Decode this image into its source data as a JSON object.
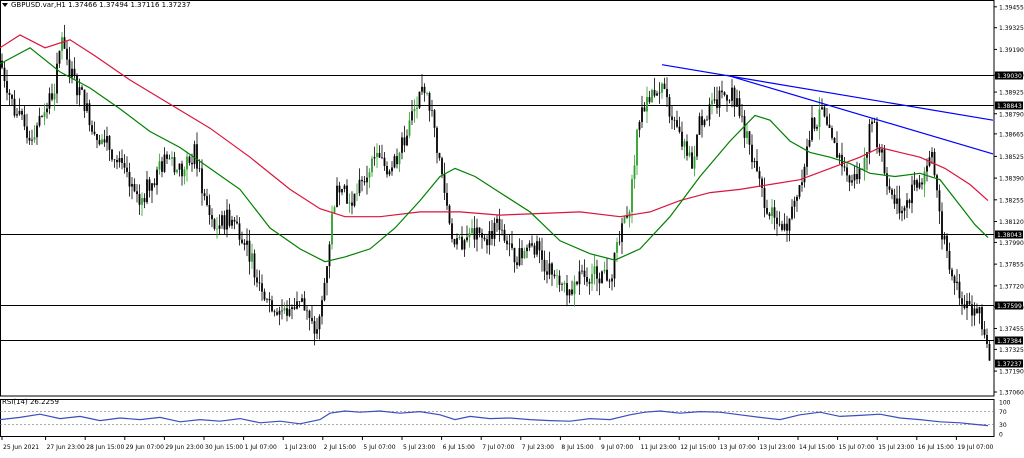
{
  "header": {
    "symbol_timeframe": "GBPUSD.var,H1",
    "ohlc": "1.37466 1.37494 1.37116 1.37237"
  },
  "rsi": {
    "label": "RSI(14) 26.2259",
    "levels": [
      "100",
      "70",
      "30",
      "0"
    ]
  },
  "colors": {
    "candle": "#000000",
    "bull_candle": "#2ca02c",
    "ma_fast": "#008000",
    "ma_slow": "#dc143c",
    "trendline": "#0000ff",
    "level_line": "#000000",
    "rsi_line": "#3b4dbf"
  },
  "chart_data": {
    "type": "candlestick",
    "price_axis": {
      "min": 1.3706,
      "max": 1.3946,
      "ticks": [
        "1.39455",
        "1.39325",
        "1.39190",
        "1.39030",
        "1.38925",
        "1.38790",
        "1.38665",
        "1.38525",
        "1.38390",
        "1.38255",
        "1.38120",
        "1.37990",
        "1.37855",
        "1.37720",
        "1.37590",
        "1.37455",
        "1.37325",
        "1.37190",
        "1.37060"
      ]
    },
    "x_labels": [
      "25 Jun 2021",
      "27 Jun 23:00",
      "28 Jun 15:00",
      "29 Jun 07:00",
      "29 Jun 23:00",
      "30 Jun 15:00",
      "1 Jul 07:00",
      "1 Jul 23:00",
      "2 Jul 15:00",
      "5 Jul 07:00",
      "5 Jul 23:00",
      "6 Jul 15:00",
      "7 Jul 07:00",
      "7 Jul 23:00",
      "8 Jul 15:00",
      "9 Jul 07:00",
      "11 Jul 23:00",
      "12 Jul 15:00",
      "13 Jul 07:00",
      "13 Jul 23:00",
      "14 Jul 15:00",
      "15 Jul 07:00",
      "15 Jul 23:00",
      "16 Jul 15:00",
      "19 Jul 07:00"
    ],
    "horizontal_levels": [
      {
        "price": 1.3903,
        "label": "1.39030"
      },
      {
        "price": 1.38843,
        "label": "1.38843"
      },
      {
        "price": 1.38043,
        "label": "1.38043"
      },
      {
        "price": 1.37599,
        "label": "1.37599"
      },
      {
        "price": 1.37384,
        "label": "1.37384"
      }
    ],
    "current_price": {
      "price": 1.37237,
      "label": "1.37237"
    },
    "path_price": [
      [
        0,
        1.3912
      ],
      [
        15,
        1.388
      ],
      [
        30,
        1.3865
      ],
      [
        40,
        1.3875
      ],
      [
        55,
        1.3895
      ],
      [
        62,
        1.393
      ],
      [
        70,
        1.3905
      ],
      [
        82,
        1.389
      ],
      [
        95,
        1.3868
      ],
      [
        110,
        1.3858
      ],
      [
        125,
        1.384
      ],
      [
        138,
        1.3822
      ],
      [
        152,
        1.3838
      ],
      [
        168,
        1.3852
      ],
      [
        182,
        1.3842
      ],
      [
        195,
        1.3855
      ],
      [
        205,
        1.3825
      ],
      [
        215,
        1.3808
      ],
      [
        230,
        1.3815
      ],
      [
        245,
        1.3802
      ],
      [
        255,
        1.3782
      ],
      [
        270,
        1.3762
      ],
      [
        285,
        1.3755
      ],
      [
        300,
        1.3765
      ],
      [
        310,
        1.3748
      ],
      [
        318,
        1.3742
      ],
      [
        326,
        1.3782
      ],
      [
        334,
        1.3825
      ],
      [
        342,
        1.3838
      ],
      [
        350,
        1.3822
      ],
      [
        362,
        1.3835
      ],
      [
        375,
        1.3852
      ],
      [
        388,
        1.3845
      ],
      [
        400,
        1.3855
      ],
      [
        412,
        1.3878
      ],
      [
        422,
        1.389
      ],
      [
        430,
        1.3885
      ],
      [
        438,
        1.3855
      ],
      [
        446,
        1.3825
      ],
      [
        455,
        1.3795
      ],
      [
        470,
        1.3805
      ],
      [
        485,
        1.38
      ],
      [
        500,
        1.3812
      ],
      [
        510,
        1.3792
      ],
      [
        520,
        1.379
      ],
      [
        532,
        1.38
      ],
      [
        545,
        1.3785
      ],
      [
        558,
        1.378
      ],
      [
        570,
        1.3768
      ],
      [
        582,
        1.3778
      ],
      [
        595,
        1.378
      ],
      [
        610,
        1.3778
      ],
      [
        620,
        1.38
      ],
      [
        630,
        1.3825
      ],
      [
        640,
        1.388
      ],
      [
        650,
        1.3892
      ],
      [
        660,
        1.3895
      ],
      [
        672,
        1.3878
      ],
      [
        682,
        1.386
      ],
      [
        692,
        1.3848
      ],
      [
        700,
        1.3875
      ],
      [
        712,
        1.3882
      ],
      [
        722,
        1.389
      ],
      [
        732,
        1.3892
      ],
      [
        742,
        1.3875
      ],
      [
        752,
        1.385
      ],
      [
        762,
        1.383
      ],
      [
        772,
        1.3815
      ],
      [
        782,
        1.3805
      ],
      [
        792,
        1.3818
      ],
      [
        802,
        1.3842
      ],
      [
        812,
        1.3872
      ],
      [
        822,
        1.3878
      ],
      [
        832,
        1.386
      ],
      [
        842,
        1.385
      ],
      [
        852,
        1.3835
      ],
      [
        862,
        1.3845
      ],
      [
        872,
        1.3875
      ],
      [
        882,
        1.3852
      ],
      [
        892,
        1.3825
      ],
      [
        902,
        1.382
      ],
      [
        912,
        1.383
      ],
      [
        922,
        1.3838
      ],
      [
        932,
        1.3855
      ],
      [
        940,
        1.381
      ],
      [
        948,
        1.379
      ],
      [
        958,
        1.377
      ],
      [
        968,
        1.376
      ],
      [
        978,
        1.3755
      ],
      [
        985,
        1.3745
      ],
      [
        990,
        1.37237
      ]
    ],
    "ma_slow": [
      [
        0,
        1.392
      ],
      [
        20,
        1.3928
      ],
      [
        45,
        1.392
      ],
      [
        70,
        1.3925
      ],
      [
        95,
        1.3915
      ],
      [
        130,
        1.39
      ],
      [
        170,
        1.3885
      ],
      [
        210,
        1.387
      ],
      [
        250,
        1.3852
      ],
      [
        290,
        1.3832
      ],
      [
        320,
        1.382
      ],
      [
        345,
        1.3815
      ],
      [
        380,
        1.3815
      ],
      [
        420,
        1.3818
      ],
      [
        460,
        1.3818
      ],
      [
        500,
        1.3816
      ],
      [
        540,
        1.3817
      ],
      [
        580,
        1.3818
      ],
      [
        620,
        1.3815
      ],
      [
        650,
        1.3818
      ],
      [
        680,
        1.3825
      ],
      [
        710,
        1.383
      ],
      [
        740,
        1.3832
      ],
      [
        770,
        1.3835
      ],
      [
        800,
        1.3838
      ],
      [
        830,
        1.3845
      ],
      [
        860,
        1.3852
      ],
      [
        880,
        1.3858
      ],
      [
        900,
        1.3855
      ],
      [
        920,
        1.3852
      ],
      [
        945,
        1.3845
      ],
      [
        970,
        1.3835
      ],
      [
        988,
        1.3825
      ]
    ],
    "ma_fast": [
      [
        0,
        1.391
      ],
      [
        30,
        1.392
      ],
      [
        60,
        1.3905
      ],
      [
        90,
        1.3895
      ],
      [
        120,
        1.3882
      ],
      [
        150,
        1.3868
      ],
      [
        180,
        1.3858
      ],
      [
        210,
        1.3845
      ],
      [
        240,
        1.3832
      ],
      [
        270,
        1.3808
      ],
      [
        300,
        1.3795
      ],
      [
        325,
        1.3787
      ],
      [
        345,
        1.379
      ],
      [
        370,
        1.3795
      ],
      [
        395,
        1.3808
      ],
      [
        420,
        1.3825
      ],
      [
        440,
        1.384
      ],
      [
        455,
        1.3845
      ],
      [
        475,
        1.384
      ],
      [
        500,
        1.383
      ],
      [
        530,
        1.3818
      ],
      [
        560,
        1.38
      ],
      [
        590,
        1.3792
      ],
      [
        615,
        1.3788
      ],
      [
        640,
        1.3795
      ],
      [
        670,
        1.3815
      ],
      [
        700,
        1.384
      ],
      [
        730,
        1.3862
      ],
      [
        755,
        1.3878
      ],
      [
        770,
        1.3875
      ],
      [
        790,
        1.3862
      ],
      [
        810,
        1.3855
      ],
      [
        830,
        1.3852
      ],
      [
        850,
        1.3848
      ],
      [
        870,
        1.3842
      ],
      [
        895,
        1.384
      ],
      [
        920,
        1.3842
      ],
      [
        940,
        1.3838
      ],
      [
        960,
        1.3822
      ],
      [
        975,
        1.381
      ],
      [
        988,
        1.3802
      ]
    ],
    "trendlines": [
      {
        "from": [
          662,
          1.39095
        ],
        "to": [
          993,
          1.3875
        ]
      },
      {
        "from": [
          727,
          1.3903
        ],
        "to": [
          993,
          1.3854
        ]
      }
    ],
    "rsi_series": [
      [
        0,
        45
      ],
      [
        20,
        52
      ],
      [
        40,
        62
      ],
      [
        60,
        48
      ],
      [
        80,
        55
      ],
      [
        100,
        42
      ],
      [
        120,
        50
      ],
      [
        140,
        45
      ],
      [
        160,
        52
      ],
      [
        180,
        38
      ],
      [
        200,
        45
      ],
      [
        220,
        40
      ],
      [
        240,
        48
      ],
      [
        260,
        35
      ],
      [
        280,
        40
      ],
      [
        300,
        32
      ],
      [
        320,
        45
      ],
      [
        330,
        65
      ],
      [
        345,
        72
      ],
      [
        360,
        68
      ],
      [
        380,
        72
      ],
      [
        400,
        65
      ],
      [
        420,
        70
      ],
      [
        440,
        60
      ],
      [
        455,
        45
      ],
      [
        470,
        55
      ],
      [
        490,
        48
      ],
      [
        510,
        50
      ],
      [
        530,
        45
      ],
      [
        550,
        42
      ],
      [
        570,
        40
      ],
      [
        590,
        48
      ],
      [
        610,
        45
      ],
      [
        630,
        60
      ],
      [
        645,
        68
      ],
      [
        660,
        72
      ],
      [
        680,
        65
      ],
      [
        700,
        70
      ],
      [
        720,
        68
      ],
      [
        740,
        60
      ],
      [
        760,
        52
      ],
      [
        780,
        45
      ],
      [
        800,
        60
      ],
      [
        820,
        68
      ],
      [
        840,
        55
      ],
      [
        860,
        58
      ],
      [
        880,
        62
      ],
      [
        900,
        50
      ],
      [
        920,
        45
      ],
      [
        940,
        38
      ],
      [
        960,
        35
      ],
      [
        975,
        30
      ],
      [
        988,
        26.2
      ]
    ]
  }
}
